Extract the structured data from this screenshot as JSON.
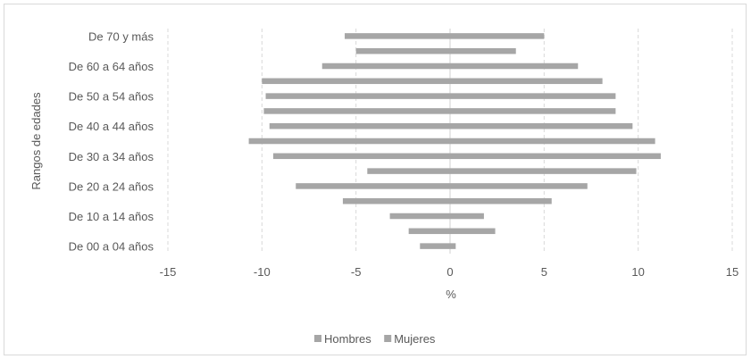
{
  "chart_data": {
    "type": "bar",
    "orientation": "horizontal",
    "stacked": true,
    "ylabel": "Rangos de edades",
    "xlabel": "%",
    "xlim": [
      -15,
      15
    ],
    "xticks": [
      -15,
      -10,
      -5,
      0,
      5,
      10,
      15
    ],
    "grid": true,
    "legend_position": "bottom",
    "categories": [
      "De 00 a 04 años",
      "",
      "De 10 a 14 años",
      "",
      "De 20 a 24 años",
      "",
      "De 30 a 34 años",
      "",
      "De 40 a 44 años",
      "",
      "De 50 a 54 años",
      "",
      "De 60 a 64 años",
      "",
      "De 70 y más"
    ],
    "series": [
      {
        "name": "Hombres",
        "color": "#a6a6a6",
        "values": [
          -1.6,
          -2.2,
          -3.2,
          -5.7,
          -8.2,
          -4.4,
          -9.4,
          -10.7,
          -9.6,
          -9.9,
          -9.8,
          -10.0,
          -6.8,
          -5.0,
          -5.6
        ]
      },
      {
        "name": "Mujeres",
        "color": "#a6a6a6",
        "values": [
          0.3,
          2.4,
          1.8,
          5.4,
          7.3,
          9.9,
          11.2,
          10.9,
          9.7,
          8.8,
          8.8,
          8.1,
          6.8,
          3.5,
          5.0
        ]
      }
    ]
  }
}
